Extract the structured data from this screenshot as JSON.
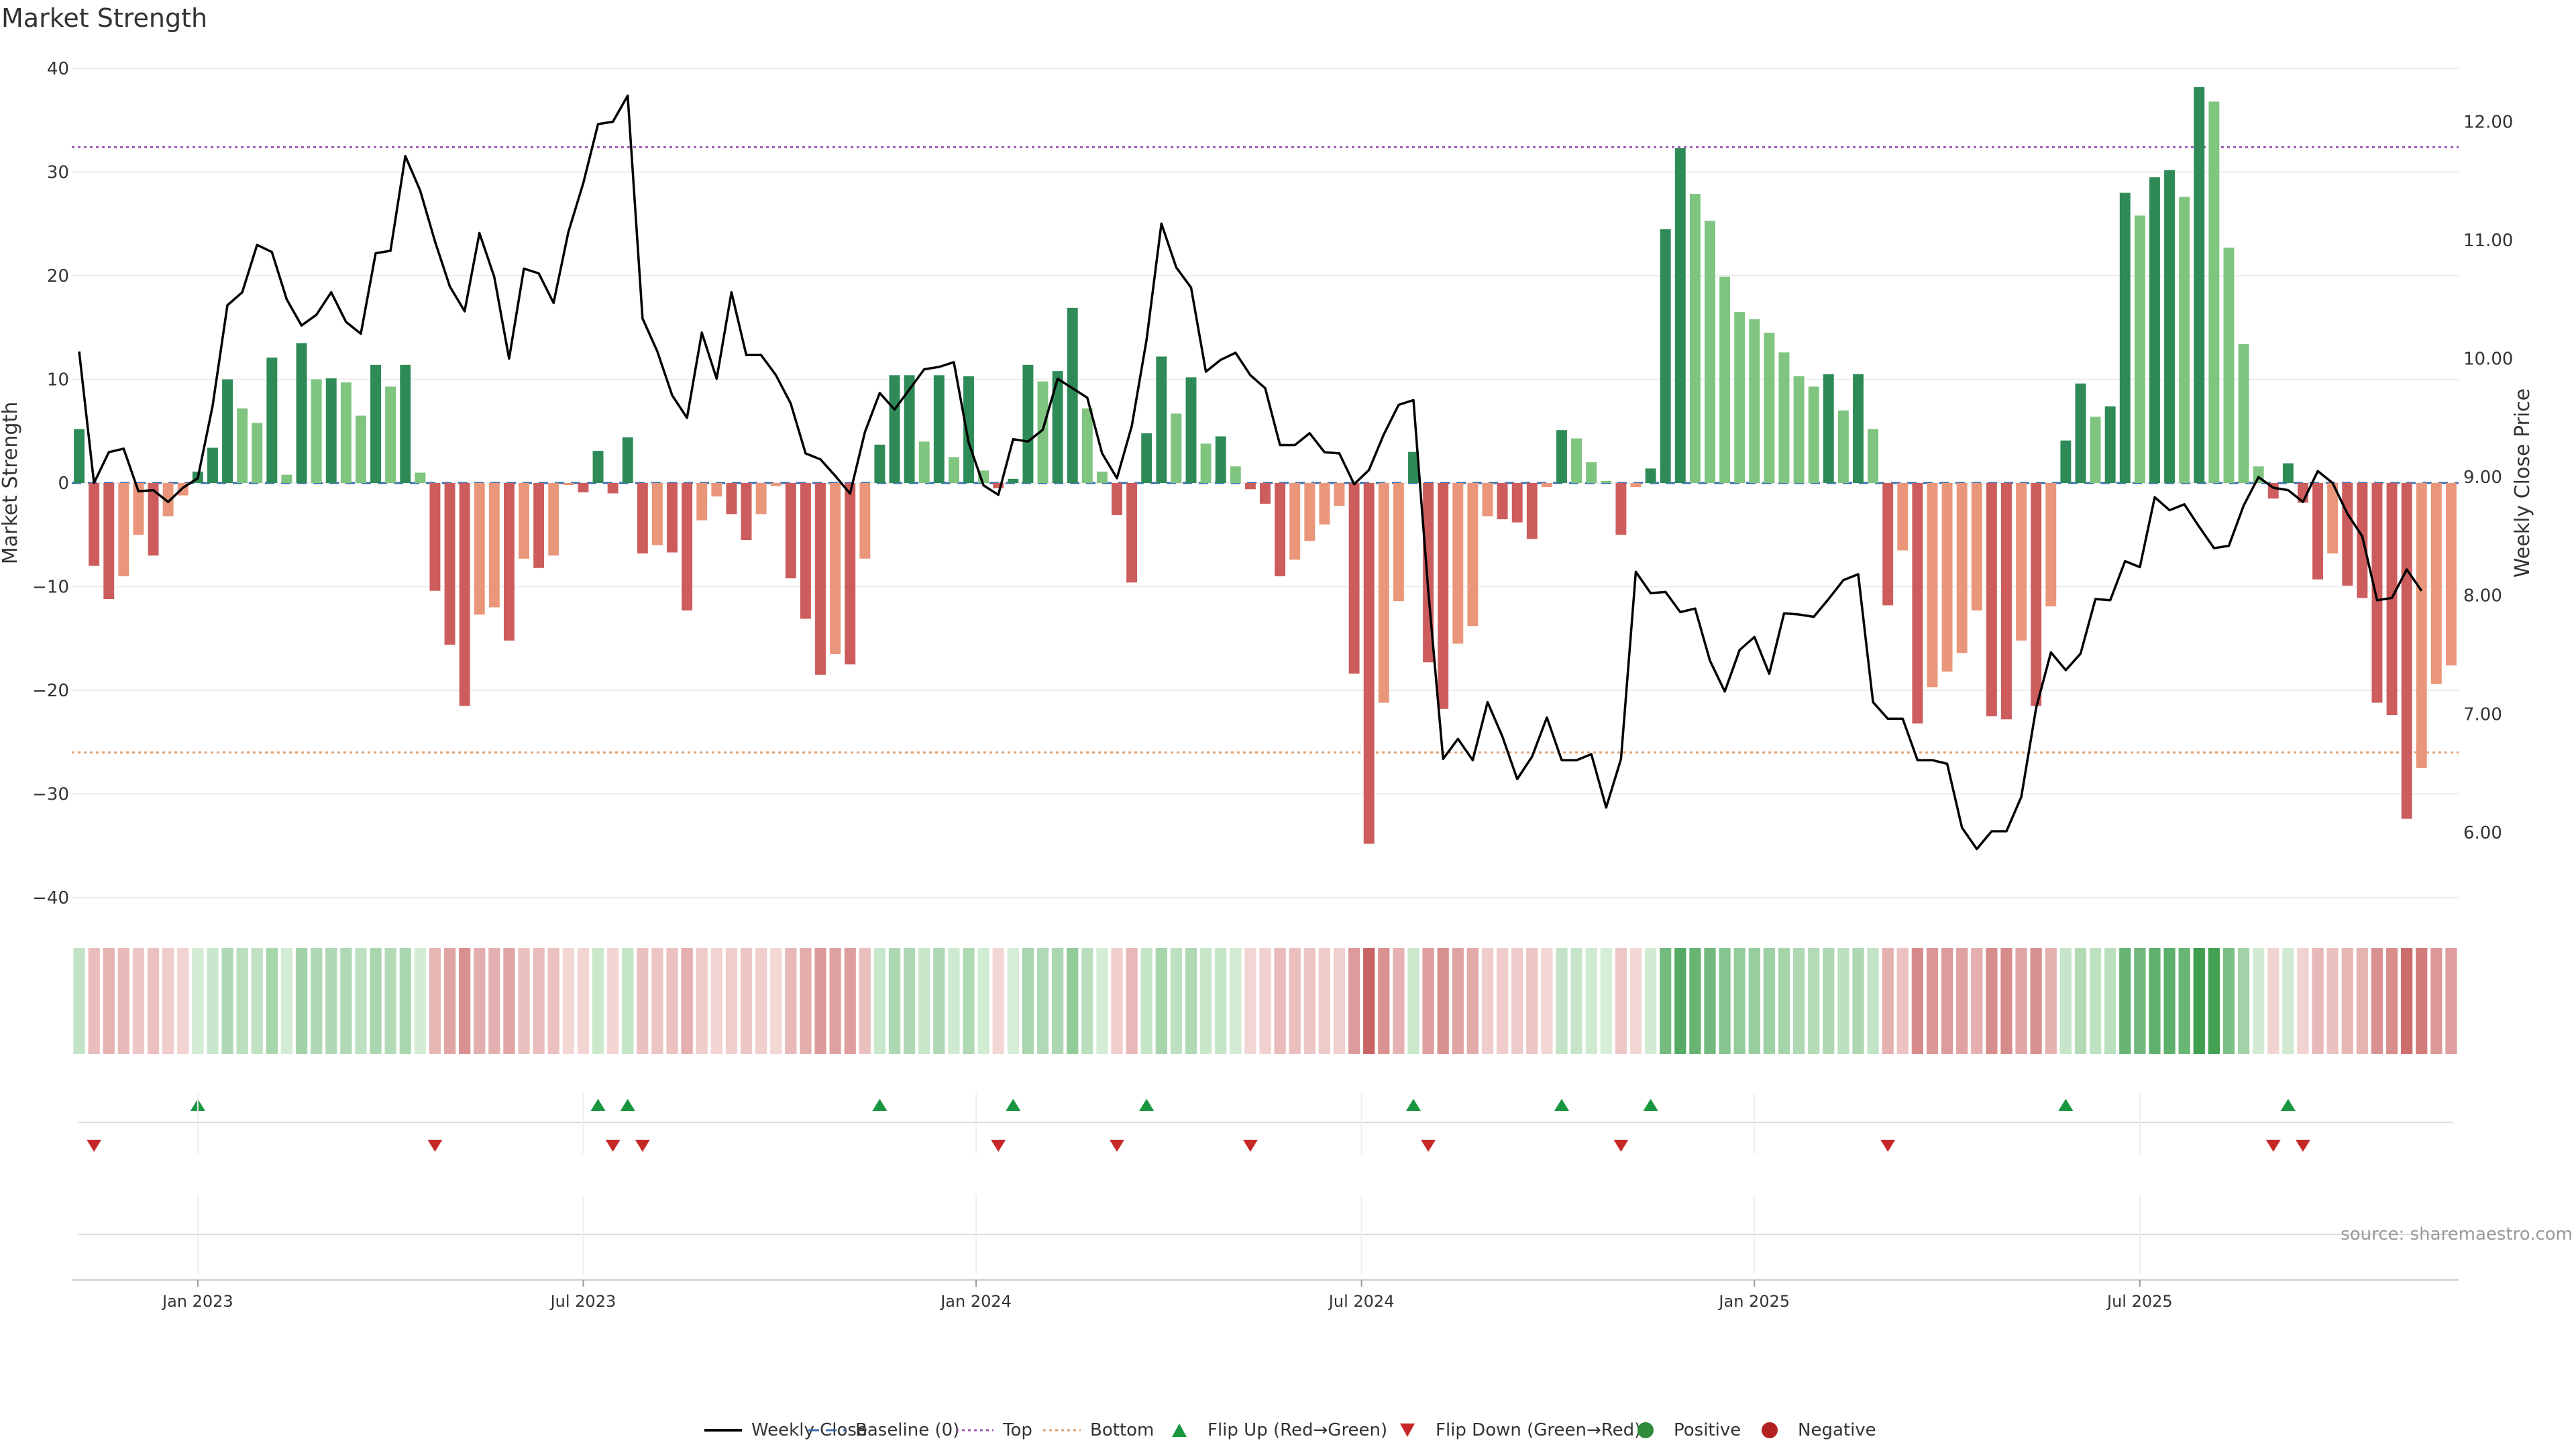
{
  "chart_data": {
    "type": "bar",
    "title": "Market Strength",
    "ylabel": "Market Strength",
    "y2label": "Weekly Close Price",
    "ylim": [
      -40,
      40
    ],
    "y2lim": [
      5.45,
      12.45
    ],
    "yticks": [
      "40",
      "30",
      "20",
      "10",
      "0",
      "−10",
      "−20",
      "−30",
      "−40"
    ],
    "y2ticks": [
      "12.00",
      "11.00",
      "10.00",
      "9.00",
      "8.00",
      "7.00",
      "6.00"
    ],
    "xticks": [
      {
        "label": "Jan 2023",
        "week": 8.5
      },
      {
        "label": "Jul 2023",
        "week": 34.5
      },
      {
        "label": "Jan 2024",
        "week": 61
      },
      {
        "label": "Jul 2024",
        "week": 87
      },
      {
        "label": "Jan 2025",
        "week": 113.5
      },
      {
        "label": "Jul 2025",
        "week": 139.5
      }
    ],
    "top_line": 32.4,
    "bottom_line": -26,
    "source_text": "source: sharemaestro.com",
    "grid": true,
    "legend_position": "bottom-center",
    "strength": [
      5.2,
      -8,
      -11.2,
      -9,
      -5,
      -7,
      -3.2,
      -1.2,
      1.1,
      3.4,
      10,
      7.2,
      5.8,
      12.1,
      0.8,
      13.5,
      10,
      10.1,
      9.7,
      6.5,
      11.4,
      9.3,
      11.4,
      1,
      -10.4,
      -15.6,
      -21.5,
      -12.7,
      -12,
      -15.2,
      -7.3,
      -8.2,
      -7,
      -0.2,
      -0.9,
      3.1,
      -1,
      4.4,
      -6.8,
      -6,
      -6.7,
      -12.3,
      -3.6,
      -1.3,
      -3,
      -5.5,
      -3,
      -0.3,
      -9.2,
      -13.1,
      -18.5,
      -16.5,
      -17.5,
      -7.3,
      3.7,
      10.4,
      10.4,
      4,
      10.4,
      2.5,
      10.3,
      1.2,
      -0.5,
      0.4,
      11.4,
      9.8,
      10.8,
      16.9,
      7.2,
      1.1,
      -3.1,
      -9.6,
      4.8,
      12.2,
      6.7,
      10.2,
      3.8,
      4.5,
      1.6,
      -0.6,
      -2,
      -9,
      -7.4,
      -5.6,
      -4,
      -2.2,
      -18.4,
      -34.8,
      -21.2,
      -11.4,
      3,
      -17.3,
      -21.8,
      -15.5,
      -13.8,
      -3.2,
      -3.5,
      -3.8,
      -5.4,
      -0.4,
      5.1,
      4.3,
      2,
      0.2,
      -5,
      -0.4,
      1.4,
      24.5,
      32.3,
      27.9,
      25.3,
      19.9,
      16.5,
      15.8,
      14.5,
      12.6,
      10.3,
      9.3,
      10.5,
      7,
      10.5,
      5.2,
      -11.8,
      -6.5,
      -23.2,
      -19.7,
      -18.2,
      -16.4,
      -12.3,
      -22.5,
      -22.8,
      -15.2,
      -21.5,
      -11.9,
      4.1,
      9.6,
      6.4,
      7.4,
      28,
      25.8,
      29.5,
      30.2,
      27.6,
      38.2,
      36.8,
      22.7,
      13.4,
      1.6,
      -1.5,
      1.9,
      -1.9,
      -9.3,
      -6.8,
      -9.9,
      -11.1,
      -21.2,
      -22.4,
      -32.4,
      -27.5,
      -19.4,
      -17.6
    ],
    "close": [
      10.06,
      8.95,
      9.21,
      9.24,
      8.88,
      8.89,
      8.79,
      8.91,
      8.99,
      9.6,
      10.45,
      10.56,
      10.96,
      10.9,
      10.5,
      10.28,
      10.37,
      10.56,
      10.31,
      10.21,
      10.89,
      10.91,
      11.71,
      11.42,
      10.99,
      10.61,
      10.4,
      11.06,
      10.69,
      10.0,
      10.76,
      10.72,
      10.47,
      11.07,
      11.48,
      11.98,
      12.0,
      12.22,
      10.34,
      10.06,
      9.69,
      9.5,
      10.22,
      9.83,
      10.56,
      10.03,
      10.03,
      9.86,
      9.62,
      9.2,
      9.15,
      9.01,
      8.86,
      9.38,
      9.71,
      9.57,
      9.74,
      9.91,
      9.93,
      9.97,
      9.29,
      8.93,
      8.85,
      9.32,
      9.3,
      9.4,
      9.83,
      9.75,
      9.67,
      9.2,
      8.99,
      9.43,
      10.16,
      11.14,
      10.77,
      10.6,
      9.89,
      9.99,
      10.05,
      9.86,
      9.75,
      9.27,
      9.27,
      9.37,
      9.21,
      9.2,
      8.94,
      9.06,
      9.36,
      9.61,
      9.65,
      8.04,
      6.62,
      6.79,
      6.61,
      7.1,
      6.81,
      6.45,
      6.64,
      6.97,
      6.61,
      6.61,
      6.66,
      6.21,
      6.62,
      8.2,
      8.02,
      8.03,
      7.86,
      7.89,
      7.45,
      7.19,
      7.54,
      7.65,
      7.34,
      7.85,
      7.84,
      7.82,
      7.97,
      8.13,
      8.18,
      7.1,
      6.96,
      6.96,
      6.61,
      6.61,
      6.58,
      6.04,
      5.86,
      6.01,
      6.01,
      6.3,
      7.05,
      7.52,
      7.37,
      7.51,
      7.97,
      7.96,
      8.29,
      8.24,
      8.83,
      8.72,
      8.77,
      8.58,
      8.4,
      8.42,
      8.76,
      9.0,
      8.91,
      8.89,
      8.79,
      9.05,
      8.95,
      8.69,
      8.5,
      7.96,
      7.98,
      8.22,
      8.04
    ]
  },
  "legend": [
    {
      "label": "Weekly Close",
      "kind": "solid-line",
      "color": "#000000"
    },
    {
      "label": "Baseline (0)",
      "kind": "dash-line",
      "color": "#3a6fb0"
    },
    {
      "label": "Top",
      "kind": "dotted-line",
      "color": "#9b59b6"
    },
    {
      "label": "Bottom",
      "kind": "dotted-line",
      "color": "#e0a070"
    },
    {
      "label": "Flip Up (Red→Green)",
      "kind": "triangle-up",
      "color": "#1a9641"
    },
    {
      "label": "Flip Down (Green→Red)",
      "kind": "triangle-down",
      "color": "#c62828"
    },
    {
      "label": "Positive",
      "kind": "dot",
      "color": "#2e8b3a"
    },
    {
      "label": "Negative",
      "kind": "dot",
      "color": "#b22222"
    }
  ],
  "colors": {
    "pos_strong": "#2e8b57",
    "pos_light": "#7fc47f",
    "neg_strong": "#cd5c5c",
    "neg_light": "#e9967a",
    "price": "#000000",
    "top": "#9b59b6",
    "bottom": "#e0a070",
    "baseline": "#3a6fb0"
  }
}
